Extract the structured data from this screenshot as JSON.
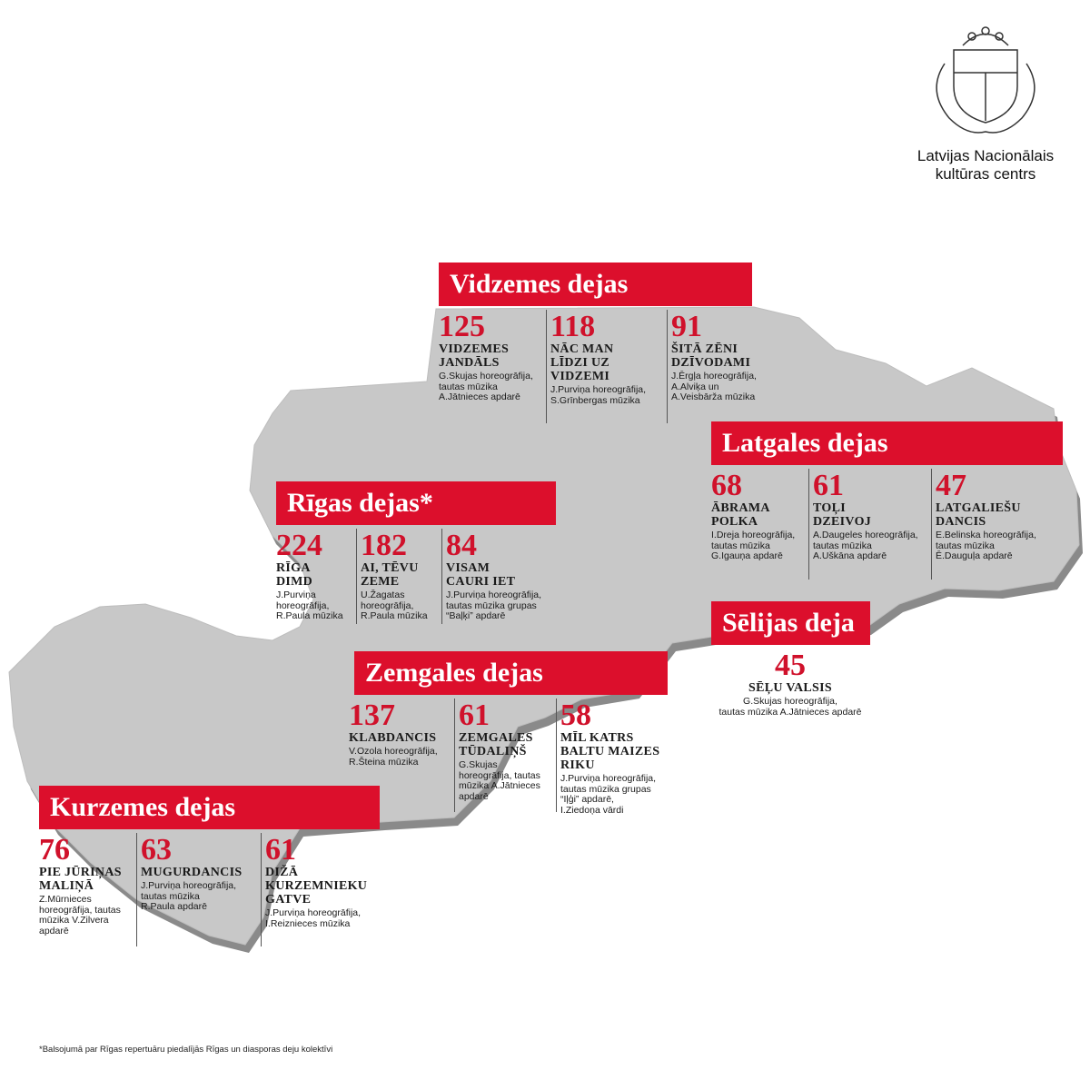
{
  "logo": {
    "lines": [
      "Latvijas Nacionālais",
      "kultūras centrs"
    ]
  },
  "regions": [
    {
      "title": "Vidzemes dejas",
      "dances": [
        {
          "votes": 125,
          "name": [
            "VIDZEMES",
            "JANDĀLS"
          ],
          "credits": [
            "G.Skujas horeogrāfija,",
            "tautas mūzika",
            "A.Jātnieces apdarē"
          ]
        },
        {
          "votes": 118,
          "name": [
            "NĀC MAN",
            "LĪDZI UZ",
            "VIDZEMI"
          ],
          "credits": [
            "J.Purviņa horeogrāfija,",
            "S.Grīnbergas mūzika"
          ]
        },
        {
          "votes": 91,
          "name": [
            "ŠITĀ ZĒNI",
            "DZĪVODAMI"
          ],
          "credits": [
            "J.Ērgļa horeogrāfija,",
            "A.Alviķa un",
            "A.Veisbārža mūzika"
          ]
        }
      ]
    },
    {
      "title": "Latgales dejas",
      "dances": [
        {
          "votes": 68,
          "name": [
            "ĀBRAMA",
            "POLKA"
          ],
          "credits": [
            "I.Dreja horeogrāfija,",
            "tautas mūzika",
            "G.Igauņa apdarē"
          ]
        },
        {
          "votes": 61,
          "name": [
            "TOĻI",
            "DZEIVOJ"
          ],
          "credits": [
            "A.Daugeles horeogrāfija,",
            "tautas mūzika",
            "A.Uškāna apdarē"
          ]
        },
        {
          "votes": 47,
          "name": [
            "LATGALIEŠU",
            "DANCIS"
          ],
          "credits": [
            "E.Belinska horeogrāfija,",
            "tautas mūzika",
            "Ē.Dauguļa apdarē"
          ]
        }
      ]
    },
    {
      "title": "Rīgas dejas*",
      "dances": [
        {
          "votes": 224,
          "name": [
            "RĪGA",
            "DIMD"
          ],
          "credits": [
            "J.Purviņa",
            "horeogrāfija,",
            "R.Paula mūzika"
          ]
        },
        {
          "votes": 182,
          "name": [
            "AI, TĒVU",
            "ZEME"
          ],
          "credits": [
            "U.Žagatas",
            "horeogrāfija,",
            "R.Paula mūzika"
          ]
        },
        {
          "votes": 84,
          "name": [
            "VISAM",
            "CAURI IET"
          ],
          "credits": [
            "J.Purviņa horeogrāfija,",
            "tautas mūzika grupas",
            "“Baļķi” apdarē"
          ]
        }
      ]
    },
    {
      "title": "Sēlijas deja",
      "dances": [
        {
          "votes": 45,
          "name": [
            "SĒĻU VALSIS"
          ],
          "credits": [
            "G.Skujas horeogrāfija,",
            "tautas mūzika A.Jātnieces apdarē"
          ]
        }
      ]
    },
    {
      "title": "Zemgales dejas",
      "dances": [
        {
          "votes": 137,
          "name": [
            "KLABDANCIS"
          ],
          "credits": [
            "V.Ozola horeogrāfija,",
            "R.Šteina mūzika"
          ]
        },
        {
          "votes": 61,
          "name": [
            "ZEMGALES",
            "TŪDALIŅŠ"
          ],
          "credits": [
            "G.Skujas",
            "horeogrāfija, tautas",
            "mūzika A.Jātnieces",
            "apdarē"
          ]
        },
        {
          "votes": 58,
          "name": [
            "MĪL KATRS",
            "BALTU MAIZES",
            "RIKU"
          ],
          "credits": [
            "J.Purviņa horeogrāfija,",
            "tautas mūzika grupas",
            "“Iļģi” apdarē,",
            "I.Ziedoņa vārdi"
          ]
        }
      ]
    },
    {
      "title": "Kurzemes dejas",
      "dances": [
        {
          "votes": 76,
          "name": [
            "PIE JŪRIŅAS",
            "MALIŅĀ"
          ],
          "credits": [
            "Z.Mūrnieces",
            "horeogrāfija, tautas",
            "mūzika V.Zilvera",
            "apdarē"
          ]
        },
        {
          "votes": 63,
          "name": [
            "MUGURDANCIS"
          ],
          "credits": [
            "J.Purviņa horeogrāfija,",
            "tautas mūzika",
            "R.Paula apdarē"
          ]
        },
        {
          "votes": 61,
          "name": [
            "DIŽĀ",
            "KURZEMNIEKU",
            "GATVE"
          ],
          "credits": [
            "J.Purviņa horeogrāfija,",
            "I.Reiznieces mūzika"
          ]
        }
      ]
    }
  ],
  "footnote": "*Balsojumā par Rīgas repertuāru piedalījās Rīgas un diasporas deju kolektīvi"
}
